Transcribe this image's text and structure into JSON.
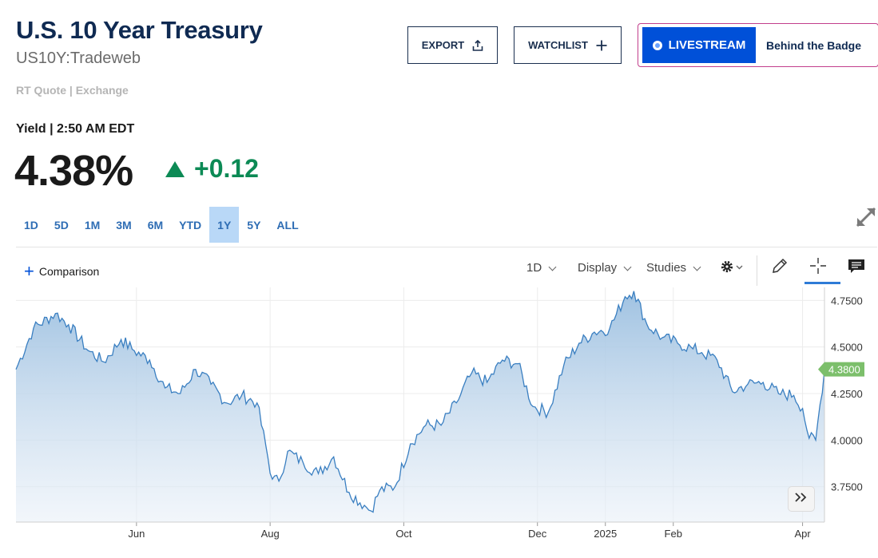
{
  "header": {
    "title": "U.S. 10 Year Treasury",
    "symbol": "US10Y:Tradeweb",
    "rt_quote": "RT Quote | Exchange"
  },
  "buttons": {
    "export": "EXPORT",
    "watchlist": "WATCHLIST",
    "livestream": "LIVESTREAM",
    "behind_badge": "Behind the Badge"
  },
  "quote": {
    "yield_label": "Yield | 2:50 AM EDT",
    "price": "4.38%",
    "change": "+0.12"
  },
  "ranges": [
    "1D",
    "5D",
    "1M",
    "3M",
    "6M",
    "YTD",
    "1Y",
    "5Y",
    "ALL"
  ],
  "active_range": "1Y",
  "toolbar": {
    "comparison": "Comparison",
    "interval": "1D",
    "display": "Display",
    "studies": "Studies"
  },
  "colors": {
    "title": "#0f2a52",
    "positive": "#0c8a55",
    "line": "#3a7fc1",
    "accent": "#0050d8",
    "last_price_tag": "#7cbf6b"
  },
  "icons": [
    "share-icon",
    "plus-icon",
    "expand-icon",
    "gear-icon",
    "pencil-icon",
    "crosshair-icon",
    "comment-icon",
    "double-chevron-right-icon"
  ],
  "chart_data": {
    "type": "area",
    "ylim": [
      3.56,
      4.82
    ],
    "y_ticks": [
      "4.7500",
      "4.5000",
      "4.2500",
      "4.0000",
      "3.7500"
    ],
    "y_tick_values": [
      4.75,
      4.5,
      4.25,
      4.0,
      3.75
    ],
    "last_value_label": "4.3800",
    "last_value": 4.38,
    "x_labels": [
      "Jun",
      "Aug",
      "Oct",
      "Dec",
      "2025",
      "Feb",
      "Apr"
    ],
    "x_label_dates": [
      "2024-06-01",
      "2024-08-01",
      "2024-10-01",
      "2024-12-01",
      "2025-01-01",
      "2025-02-01",
      "2025-04-01"
    ],
    "x_range": [
      "2024-04-07",
      "2025-04-11"
    ],
    "grid": true,
    "series": [
      {
        "x": [
          "2024-04-07",
          "2024-04-15",
          "2024-04-25",
          "2024-05-01",
          "2024-05-10",
          "2024-05-17",
          "2024-05-25",
          "2024-05-31",
          "2024-06-07",
          "2024-06-14",
          "2024-06-21",
          "2024-06-28",
          "2024-07-05",
          "2024-07-12",
          "2024-07-19",
          "2024-07-26",
          "2024-08-02",
          "2024-08-05",
          "2024-08-09",
          "2024-08-16",
          "2024-08-23",
          "2024-08-30",
          "2024-09-06",
          "2024-09-13",
          "2024-09-16",
          "2024-09-20",
          "2024-09-27",
          "2024-10-04",
          "2024-10-11",
          "2024-10-18",
          "2024-10-25",
          "2024-11-01",
          "2024-11-08",
          "2024-11-15",
          "2024-11-22",
          "2024-11-29",
          "2024-12-06",
          "2024-12-13",
          "2024-12-20",
          "2024-12-27",
          "2025-01-03",
          "2025-01-10",
          "2025-01-14",
          "2025-01-20",
          "2025-01-27",
          "2025-02-03",
          "2025-02-10",
          "2025-02-14",
          "2025-02-21",
          "2025-02-28",
          "2025-03-07",
          "2025-03-14",
          "2025-03-21",
          "2025-03-28",
          "2025-04-01",
          "2025-04-04",
          "2025-04-07",
          "2025-04-11"
        ],
        "values": [
          4.38,
          4.6,
          4.68,
          4.62,
          4.48,
          4.42,
          4.54,
          4.48,
          4.43,
          4.28,
          4.25,
          4.38,
          4.3,
          4.2,
          4.24,
          4.2,
          3.79,
          3.78,
          3.94,
          3.88,
          3.82,
          3.91,
          3.72,
          3.65,
          3.62,
          3.73,
          3.75,
          3.98,
          4.08,
          4.08,
          4.2,
          4.36,
          4.31,
          4.43,
          4.41,
          4.18,
          4.15,
          4.4,
          4.52,
          4.58,
          4.6,
          4.77,
          4.8,
          4.62,
          4.55,
          4.52,
          4.49,
          4.47,
          4.43,
          4.26,
          4.3,
          4.31,
          4.25,
          4.24,
          4.17,
          4.01,
          4.0,
          4.38
        ]
      }
    ]
  }
}
